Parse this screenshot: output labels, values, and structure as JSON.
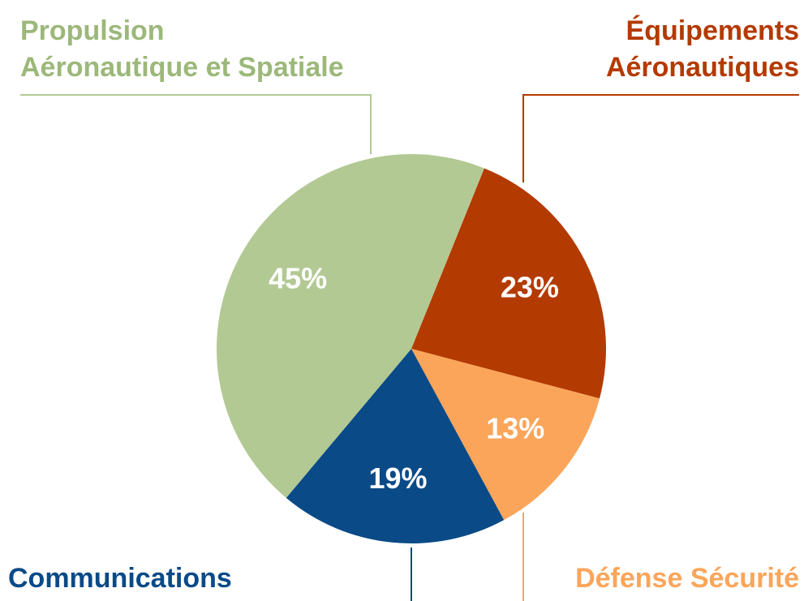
{
  "chart_data": {
    "type": "pie",
    "categories": [
      [
        "Équipements",
        "Aéronautiques"
      ],
      [
        "Défense Sécurité"
      ],
      [
        "Communications"
      ],
      [
        "Propulsion",
        "Aéronautique et Spatiale"
      ]
    ],
    "values": [
      23,
      13,
      19,
      45
    ],
    "value_labels": [
      "23%",
      "13%",
      "19%",
      "45%"
    ],
    "colors": [
      "#b33a00",
      "#fba55a",
      "#0a4a87",
      "#b3c994"
    ],
    "label_colors": [
      "#b33a00",
      "#fba55a",
      "#0a4a87",
      "#9cb87a"
    ]
  }
}
